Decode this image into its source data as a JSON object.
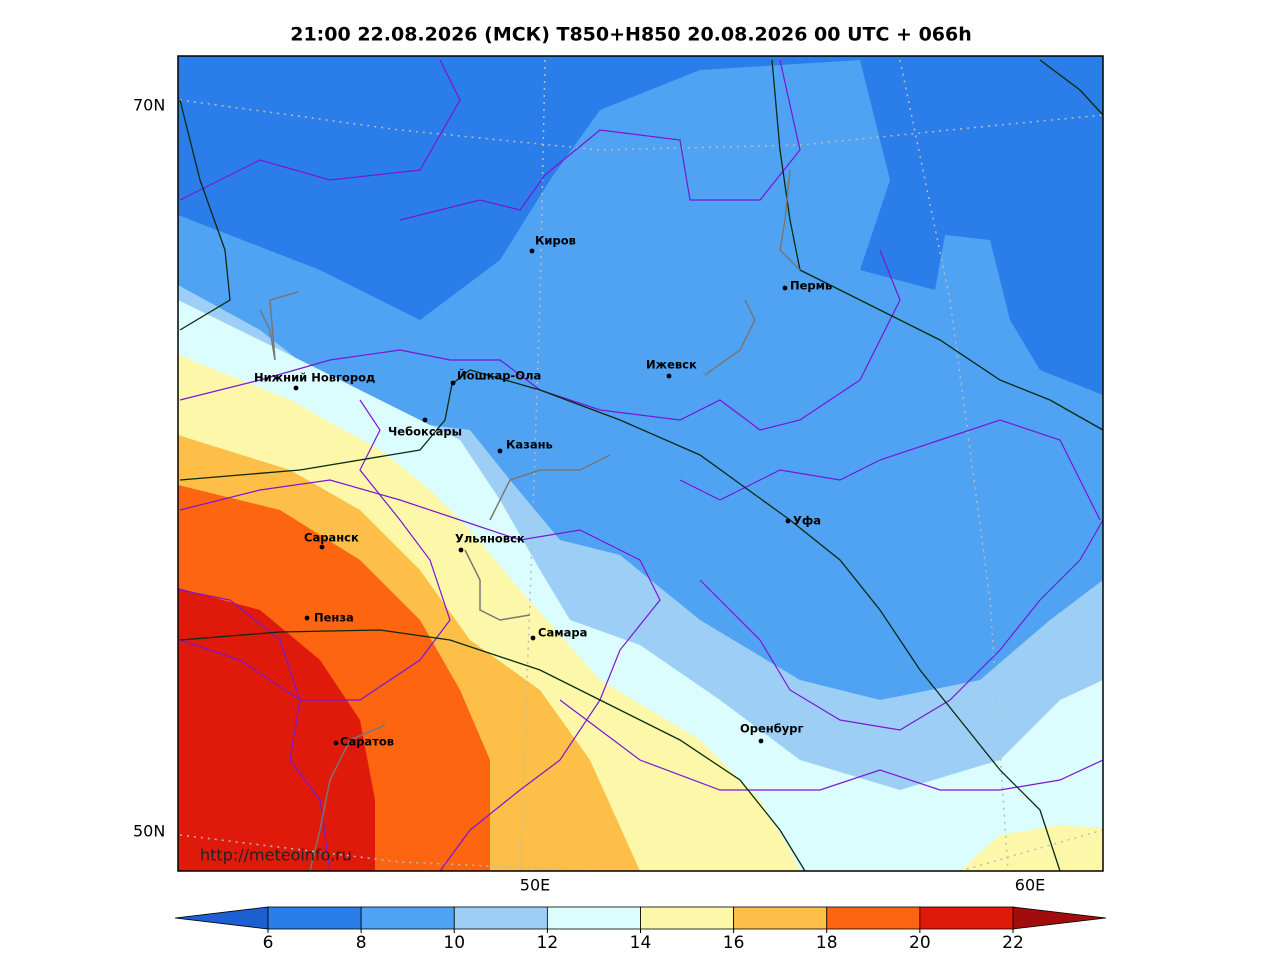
{
  "title": "21:00 22.08.2026 (МСК) T850+H850 20.08.2026 00 UTC + 066h",
  "map": {
    "lat_labels": [
      "70N",
      "50N"
    ],
    "lon_labels": [
      "50E",
      "60E"
    ],
    "cities": [
      "Киров",
      "Пермь",
      "Нижний Новгород",
      "Йошкар-Ола",
      "Ижевск",
      "Чебоксары",
      "Казань",
      "Уфа",
      "Саранск",
      "Ульяновск",
      "Пенза",
      "Самара",
      "Оренбург",
      "Саратов"
    ],
    "watermark": "http://meteoinfo.ru"
  },
  "colorbar": {
    "ticks": [
      6,
      8,
      10,
      12,
      14,
      16,
      18,
      20,
      22
    ],
    "colors": [
      "#1c5fd0",
      "#2b7de9",
      "#4fa3f2",
      "#9dcff6",
      "#dcfdfd",
      "#fdf8a9",
      "#fdbf47",
      "#fd6511",
      "#e01a0b",
      "#a30c0c"
    ],
    "extend": "both"
  }
}
